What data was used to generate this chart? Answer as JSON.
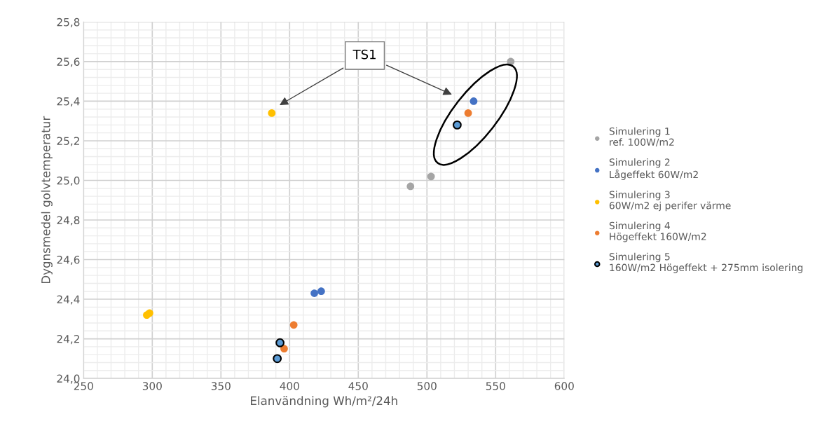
{
  "chart_data": {
    "type": "scatter",
    "xlabel": "Elanvändning Wh/m²/24h",
    "ylabel": "Dygnsmedel golvtemperatur",
    "xlim": [
      250,
      600
    ],
    "xticks": [
      250,
      300,
      350,
      400,
      450,
      500,
      550,
      600
    ],
    "ylim": [
      24.0,
      25.8
    ],
    "yticks": [
      {
        "value": 24.0,
        "label": "24,0"
      },
      {
        "value": 24.2,
        "label": "24,2"
      },
      {
        "value": 24.4,
        "label": "24,4"
      },
      {
        "value": 24.6,
        "label": "24,6"
      },
      {
        "value": 24.8,
        "label": "24,8"
      },
      {
        "value": 25.0,
        "label": "25,0"
      },
      {
        "value": 25.2,
        "label": "25,2"
      },
      {
        "value": 25.4,
        "label": "25,4"
      },
      {
        "value": 25.6,
        "label": "25,6"
      },
      {
        "value": 25.8,
        "label": "25,8"
      }
    ],
    "grid": true,
    "legend": "right",
    "marker": "circle",
    "annotations": [
      "TS1"
    ],
    "series": [
      {
        "name": "Simulering 1\nref. 100W/m2",
        "color": "#a5a5a5",
        "x": [
          561,
          488,
          503
        ],
        "values": [
          25.6,
          24.97,
          25.02
        ]
      },
      {
        "name": "Simulering 2\nLågeffekt 60W/m2",
        "color": "#4472c4",
        "x": [
          534,
          418,
          423
        ],
        "values": [
          25.4,
          24.43,
          24.44
        ]
      },
      {
        "name": "Simulering 3\n60W/m2 ej perifer värme",
        "color": "#ffc000",
        "x": [
          387,
          296,
          298
        ],
        "values": [
          25.34,
          24.32,
          24.33
        ]
      },
      {
        "name": "Simulering 4\nHögeffekt 160W/m2",
        "color": "#ed7d31",
        "x": [
          530,
          403,
          396
        ],
        "values": [
          25.34,
          24.27,
          24.15
        ]
      },
      {
        "name": "Simulering 5\n160W/m2 Högeffekt + 275mm isolering",
        "color": "#5b9bd5",
        "x": [
          522,
          393,
          391
        ],
        "values": [
          25.28,
          24.18,
          24.1
        ]
      }
    ]
  }
}
